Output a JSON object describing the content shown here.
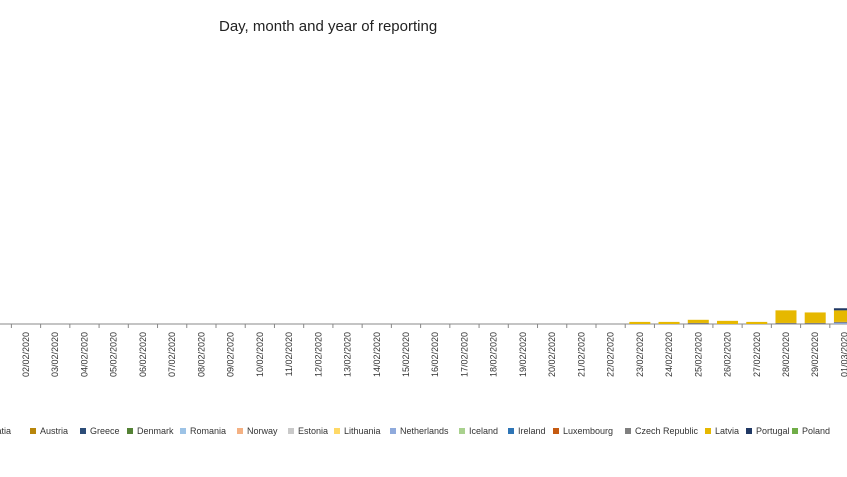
{
  "chart_data": {
    "type": "bar",
    "stacked": true,
    "title": "Day, month and year of reporting",
    "categories": [
      "02/02/2020",
      "03/02/2020",
      "04/02/2020",
      "05/02/2020",
      "06/02/2020",
      "07/02/2020",
      "08/02/2020",
      "09/02/2020",
      "10/02/2020",
      "11/02/2020",
      "12/02/2020",
      "13/02/2020",
      "14/02/2020",
      "15/02/2020",
      "16/02/2020",
      "17/02/2020",
      "18/02/2020",
      "19/02/2020",
      "20/02/2020",
      "21/02/2020",
      "22/02/2020",
      "23/02/2020",
      "24/02/2020",
      "25/02/2020",
      "26/02/2020",
      "27/02/2020",
      "28/02/2020",
      "29/02/2020",
      "01/03/2020"
    ],
    "series": [
      {
        "name": "Croatia",
        "color": "#7a8f3a",
        "values": [
          0,
          0,
          0,
          0,
          0,
          0,
          0,
          0,
          0,
          0,
          0,
          0,
          0,
          0,
          0,
          0,
          0,
          0,
          0,
          0,
          0,
          0,
          0,
          0,
          0,
          0,
          0,
          0,
          0
        ]
      },
      {
        "name": "Austria",
        "color": "#b8860b",
        "values": [
          0,
          0,
          0,
          0,
          0,
          0,
          0,
          0,
          0,
          0,
          0,
          0,
          0,
          0,
          0,
          0,
          0,
          0,
          0,
          0,
          0,
          0,
          0,
          0,
          0,
          0,
          0,
          0,
          0
        ]
      },
      {
        "name": "Greece",
        "color": "#2c4d78",
        "values": [
          0,
          0,
          0,
          0,
          0,
          0,
          0,
          0,
          0,
          0,
          0,
          0,
          0,
          0,
          0,
          0,
          0,
          0,
          0,
          0,
          0,
          0,
          0,
          0,
          0,
          0,
          0,
          0,
          0
        ]
      },
      {
        "name": "Denmark",
        "color": "#548235",
        "values": [
          0,
          0,
          0,
          0,
          0,
          0,
          0,
          0,
          0,
          0,
          0,
          0,
          0,
          0,
          0,
          0,
          0,
          0,
          0,
          0,
          0,
          0,
          0,
          0,
          0,
          0,
          0,
          0,
          0
        ]
      },
      {
        "name": "Romania",
        "color": "#9dc3e6",
        "values": [
          0,
          0,
          0,
          0,
          0,
          0,
          0,
          0,
          0,
          0,
          0,
          0,
          0,
          0,
          0,
          0,
          0,
          0,
          0,
          0,
          0,
          0,
          0,
          0,
          0,
          0,
          0,
          0,
          0
        ]
      },
      {
        "name": "Norway",
        "color": "#f4b183",
        "values": [
          0,
          0,
          0,
          0,
          0,
          0,
          0,
          0,
          0,
          0,
          0,
          0,
          0,
          0,
          0,
          0,
          0,
          0,
          0,
          0,
          0,
          0,
          0,
          0,
          0,
          0,
          0,
          0,
          0
        ]
      },
      {
        "name": "Estonia",
        "color": "#c9c9c9",
        "values": [
          0,
          0,
          0,
          0,
          0,
          0,
          0,
          0,
          0,
          0,
          0,
          0,
          0,
          0,
          0,
          0,
          0,
          0,
          0,
          0,
          0,
          0,
          0,
          0,
          0,
          0,
          0,
          0,
          0
        ]
      },
      {
        "name": "Lithuania",
        "color": "#ffd966",
        "values": [
          0,
          0,
          0,
          0,
          0,
          0,
          0,
          0,
          0,
          0,
          0,
          0,
          0,
          0,
          0,
          0,
          0,
          0,
          0,
          0,
          0,
          0,
          0,
          0,
          0,
          0,
          0,
          0,
          0
        ]
      },
      {
        "name": "Netherlands",
        "color": "#8faadc",
        "values": [
          0,
          0,
          0,
          0,
          0,
          0,
          0,
          0,
          0,
          0,
          0,
          0,
          0,
          0,
          0,
          0,
          0,
          0,
          0,
          0,
          0,
          0,
          0,
          0,
          0,
          0,
          0,
          0,
          1
        ]
      },
      {
        "name": "Iceland",
        "color": "#a9d18e",
        "values": [
          0,
          0,
          0,
          0,
          0,
          0,
          0,
          0,
          0,
          0,
          0,
          0,
          0,
          0,
          0,
          0,
          0,
          0,
          0,
          0,
          0,
          0,
          0,
          0,
          0,
          0,
          0,
          0,
          0
        ]
      },
      {
        "name": "Ireland",
        "color": "#2e75b6",
        "values": [
          0,
          0,
          0,
          0,
          0,
          0,
          0,
          0,
          0,
          0,
          0,
          0,
          0,
          0,
          0,
          0,
          0,
          0,
          0,
          0,
          0,
          0,
          0,
          0,
          0,
          0,
          0,
          0,
          0
        ]
      },
      {
        "name": "Luxembourg",
        "color": "#c55a11",
        "values": [
          0,
          0,
          0,
          0,
          0,
          0,
          0,
          0,
          0,
          0,
          0,
          0,
          0,
          0,
          0,
          0,
          0,
          0,
          0,
          0,
          0,
          0,
          0,
          0,
          0,
          0,
          0,
          0,
          0
        ]
      },
      {
        "name": "Czech Republic",
        "color": "#7f7f7f",
        "values": [
          0,
          0,
          0,
          0,
          0,
          0,
          0,
          0,
          0,
          0,
          0,
          0,
          0,
          0,
          0,
          0,
          0,
          0,
          0,
          0,
          0,
          0,
          0,
          1,
          0,
          0,
          1,
          1,
          1
        ]
      },
      {
        "name": "Latvia",
        "color": "#e6b800",
        "values": [
          0,
          0,
          0,
          0,
          0,
          0,
          0,
          0,
          0,
          0,
          0,
          0,
          0,
          0,
          0,
          0,
          0,
          0,
          0,
          0,
          0,
          2,
          2,
          3,
          3,
          2,
          12,
          10,
          11
        ]
      },
      {
        "name": "Portugal",
        "color": "#203864",
        "values": [
          0,
          0,
          0,
          0,
          0,
          0,
          0,
          0,
          0,
          0,
          0,
          0,
          0,
          0,
          0,
          0,
          0,
          0,
          0,
          0,
          0,
          0,
          0,
          0,
          0,
          0,
          0,
          0,
          2
        ]
      },
      {
        "name": "Poland",
        "color": "#70ad47",
        "values": [
          0,
          0,
          0,
          0,
          0,
          0,
          0,
          0,
          0,
          0,
          0,
          0,
          0,
          0,
          0,
          0,
          0,
          0,
          0,
          0,
          0,
          0,
          0,
          0,
          0,
          0,
          0,
          0,
          0
        ]
      }
    ],
    "legend_position": "bottom",
    "grid": false
  }
}
